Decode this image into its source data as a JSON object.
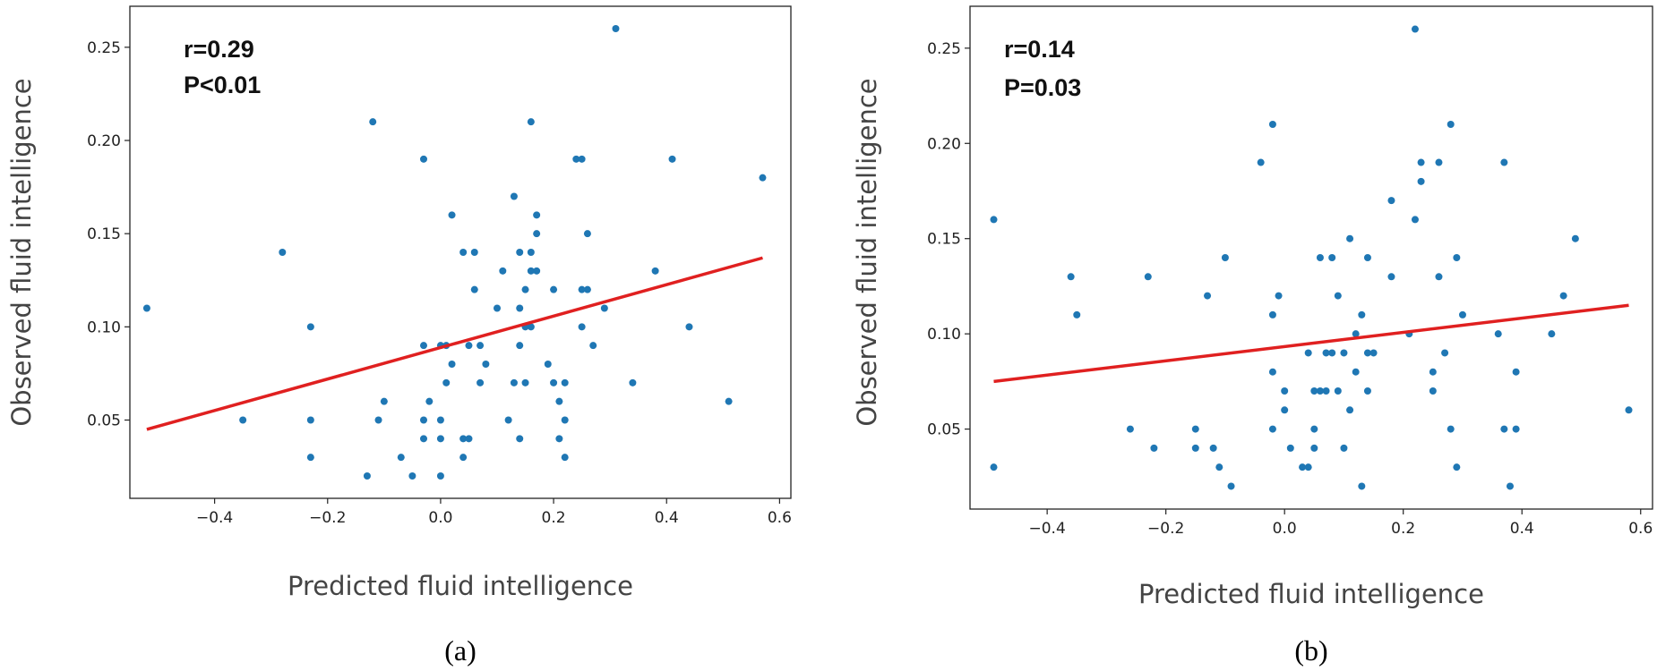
{
  "chart_data": [
    {
      "type": "scatter",
      "panel_label": "(a)",
      "annotations": [
        "r=0.29",
        "P<0.01"
      ],
      "xlabel": "Predicted fluid intelligence",
      "ylabel": "Observed fluid intelligence",
      "xlim": [
        -0.55,
        0.62
      ],
      "ylim": [
        0.008,
        0.272
      ],
      "xticks": [
        -0.4,
        -0.2,
        0.0,
        0.2,
        0.4,
        0.6
      ],
      "xtick_labels": [
        "−0.4",
        "−0.2",
        "0.0",
        "0.2",
        "0.4",
        "0.6"
      ],
      "yticks": [
        0.05,
        0.1,
        0.15,
        0.2,
        0.25
      ],
      "ytick_labels": [
        "0.05",
        "0.10",
        "0.15",
        "0.20",
        "0.25"
      ],
      "point_color": "#1f77b4",
      "fit_color": "#e02020",
      "fit_line": {
        "x": [
          -0.52,
          0.57
        ],
        "y": [
          0.045,
          0.137
        ]
      },
      "points": [
        [
          -0.52,
          0.11
        ],
        [
          -0.35,
          0.05
        ],
        [
          -0.28,
          0.14
        ],
        [
          -0.23,
          0.1
        ],
        [
          -0.23,
          0.05
        ],
        [
          -0.23,
          0.03
        ],
        [
          -0.12,
          0.21
        ],
        [
          -0.13,
          0.02
        ],
        [
          -0.11,
          0.05
        ],
        [
          -0.1,
          0.06
        ],
        [
          -0.07,
          0.03
        ],
        [
          -0.05,
          0.02
        ],
        [
          -0.03,
          0.19
        ],
        [
          -0.03,
          0.09
        ],
        [
          -0.03,
          0.05
        ],
        [
          -0.03,
          0.04
        ],
        [
          -0.02,
          0.06
        ],
        [
          0.0,
          0.09
        ],
        [
          0.0,
          0.05
        ],
        [
          0.0,
          0.04
        ],
        [
          0.0,
          0.02
        ],
        [
          0.01,
          0.09
        ],
        [
          0.01,
          0.07
        ],
        [
          0.02,
          0.16
        ],
        [
          0.02,
          0.08
        ],
        [
          0.04,
          0.14
        ],
        [
          0.04,
          0.04
        ],
        [
          0.04,
          0.03
        ],
        [
          0.05,
          0.09
        ],
        [
          0.05,
          0.04
        ],
        [
          0.06,
          0.14
        ],
        [
          0.06,
          0.12
        ],
        [
          0.07,
          0.09
        ],
        [
          0.07,
          0.07
        ],
        [
          0.08,
          0.08
        ],
        [
          0.1,
          0.11
        ],
        [
          0.11,
          0.13
        ],
        [
          0.12,
          0.05
        ],
        [
          0.13,
          0.17
        ],
        [
          0.13,
          0.07
        ],
        [
          0.14,
          0.14
        ],
        [
          0.14,
          0.11
        ],
        [
          0.14,
          0.09
        ],
        [
          0.14,
          0.04
        ],
        [
          0.15,
          0.07
        ],
        [
          0.15,
          0.12
        ],
        [
          0.15,
          0.1
        ],
        [
          0.16,
          0.21
        ],
        [
          0.16,
          0.14
        ],
        [
          0.16,
          0.1
        ],
        [
          0.16,
          0.13
        ],
        [
          0.17,
          0.16
        ],
        [
          0.17,
          0.15
        ],
        [
          0.17,
          0.13
        ],
        [
          0.19,
          0.08
        ],
        [
          0.2,
          0.12
        ],
        [
          0.2,
          0.07
        ],
        [
          0.21,
          0.06
        ],
        [
          0.21,
          0.04
        ],
        [
          0.22,
          0.07
        ],
        [
          0.22,
          0.05
        ],
        [
          0.22,
          0.03
        ],
        [
          0.24,
          0.19
        ],
        [
          0.25,
          0.19
        ],
        [
          0.25,
          0.12
        ],
        [
          0.25,
          0.1
        ],
        [
          0.26,
          0.12
        ],
        [
          0.26,
          0.15
        ],
        [
          0.27,
          0.09
        ],
        [
          0.29,
          0.11
        ],
        [
          0.31,
          0.26
        ],
        [
          0.34,
          0.07
        ],
        [
          0.38,
          0.13
        ],
        [
          0.41,
          0.19
        ],
        [
          0.44,
          0.1
        ],
        [
          0.51,
          0.06
        ],
        [
          0.57,
          0.18
        ]
      ]
    },
    {
      "type": "scatter",
      "panel_label": "(b)",
      "annotations": [
        "r=0.14",
        "P=0.03"
      ],
      "xlabel": "Predicted fluid intelligence",
      "ylabel": "Observed fluid intelligence",
      "xlim": [
        -0.53,
        0.62
      ],
      "ylim": [
        0.008,
        0.272
      ],
      "xticks": [
        -0.4,
        -0.2,
        0.0,
        0.2,
        0.4,
        0.6
      ],
      "xtick_labels": [
        "−0.4",
        "−0.2",
        "0.0",
        "0.2",
        "0.4",
        "0.6"
      ],
      "yticks": [
        0.05,
        0.1,
        0.15,
        0.2,
        0.25
      ],
      "ytick_labels": [
        "0.05",
        "0.10",
        "0.15",
        "0.20",
        "0.25"
      ],
      "point_color": "#1f77b4",
      "fit_color": "#e02020",
      "fit_line": {
        "x": [
          -0.49,
          0.58
        ],
        "y": [
          0.075,
          0.115
        ]
      },
      "points": [
        [
          -0.49,
          0.16
        ],
        [
          -0.49,
          0.03
        ],
        [
          -0.36,
          0.13
        ],
        [
          -0.35,
          0.11
        ],
        [
          -0.26,
          0.05
        ],
        [
          -0.23,
          0.13
        ],
        [
          -0.22,
          0.04
        ],
        [
          -0.15,
          0.05
        ],
        [
          -0.15,
          0.04
        ],
        [
          -0.13,
          0.12
        ],
        [
          -0.12,
          0.04
        ],
        [
          -0.11,
          0.03
        ],
        [
          -0.1,
          0.14
        ],
        [
          -0.09,
          0.02
        ],
        [
          -0.04,
          0.19
        ],
        [
          -0.02,
          0.21
        ],
        [
          -0.02,
          0.11
        ],
        [
          -0.02,
          0.08
        ],
        [
          -0.02,
          0.05
        ],
        [
          -0.01,
          0.12
        ],
        [
          0.0,
          0.07
        ],
        [
          0.0,
          0.06
        ],
        [
          0.01,
          0.04
        ],
        [
          0.03,
          0.03
        ],
        [
          0.04,
          0.09
        ],
        [
          0.04,
          0.03
        ],
        [
          0.05,
          0.07
        ],
        [
          0.05,
          0.05
        ],
        [
          0.05,
          0.04
        ],
        [
          0.06,
          0.07
        ],
        [
          0.06,
          0.14
        ],
        [
          0.07,
          0.09
        ],
        [
          0.07,
          0.07
        ],
        [
          0.08,
          0.14
        ],
        [
          0.08,
          0.09
        ],
        [
          0.09,
          0.12
        ],
        [
          0.09,
          0.07
        ],
        [
          0.1,
          0.09
        ],
        [
          0.1,
          0.04
        ],
        [
          0.11,
          0.15
        ],
        [
          0.11,
          0.06
        ],
        [
          0.12,
          0.1
        ],
        [
          0.12,
          0.08
        ],
        [
          0.13,
          0.11
        ],
        [
          0.13,
          0.02
        ],
        [
          0.14,
          0.14
        ],
        [
          0.14,
          0.09
        ],
        [
          0.14,
          0.07
        ],
        [
          0.15,
          0.09
        ],
        [
          0.18,
          0.17
        ],
        [
          0.18,
          0.13
        ],
        [
          0.21,
          0.1
        ],
        [
          0.22,
          0.26
        ],
        [
          0.22,
          0.16
        ],
        [
          0.23,
          0.19
        ],
        [
          0.23,
          0.18
        ],
        [
          0.25,
          0.08
        ],
        [
          0.25,
          0.07
        ],
        [
          0.26,
          0.19
        ],
        [
          0.26,
          0.13
        ],
        [
          0.27,
          0.09
        ],
        [
          0.28,
          0.21
        ],
        [
          0.28,
          0.05
        ],
        [
          0.29,
          0.14
        ],
        [
          0.29,
          0.03
        ],
        [
          0.3,
          0.11
        ],
        [
          0.36,
          0.1
        ],
        [
          0.37,
          0.19
        ],
        [
          0.37,
          0.05
        ],
        [
          0.38,
          0.02
        ],
        [
          0.39,
          0.08
        ],
        [
          0.39,
          0.05
        ],
        [
          0.45,
          0.1
        ],
        [
          0.47,
          0.12
        ],
        [
          0.49,
          0.15
        ],
        [
          0.58,
          0.06
        ]
      ]
    }
  ]
}
